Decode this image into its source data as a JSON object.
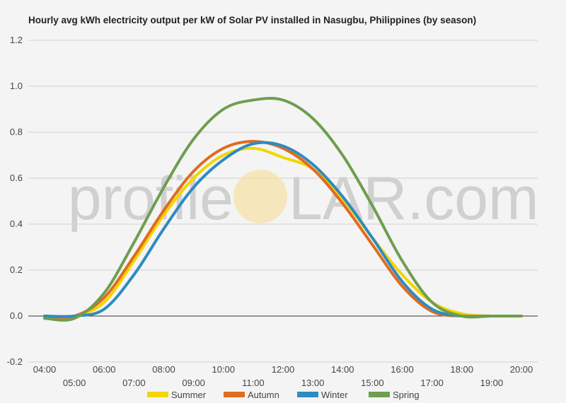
{
  "chart_data": {
    "type": "line",
    "title": "Hourly avg kWh electricity output per kW of Solar PV installed in Nasugbu, Philippines (by season)",
    "xlabel": "",
    "ylabel": "",
    "x": [
      "04:00",
      "05:00",
      "06:00",
      "07:00",
      "08:00",
      "09:00",
      "10:00",
      "11:00",
      "12:00",
      "13:00",
      "14:00",
      "15:00",
      "16:00",
      "17:00",
      "18:00",
      "19:00",
      "20:00"
    ],
    "ylim": [
      -0.2,
      1.2
    ],
    "yticks": [
      "-0.2",
      "0.0",
      "0.2",
      "0.4",
      "0.6",
      "0.8",
      "1.0",
      "1.2"
    ],
    "grid": true,
    "legend": "bottom",
    "series": [
      {
        "name": "Summer",
        "color": "#f2d600",
        "values": [
          0,
          0,
          0.06,
          0.24,
          0.44,
          0.6,
          0.7,
          0.73,
          0.69,
          0.64,
          0.51,
          0.34,
          0.18,
          0.06,
          0.01,
          0,
          0
        ]
      },
      {
        "name": "Autumn",
        "color": "#e06c1e",
        "values": [
          0,
          0,
          0.08,
          0.26,
          0.46,
          0.63,
          0.73,
          0.76,
          0.73,
          0.64,
          0.49,
          0.31,
          0.13,
          0.02,
          0,
          0,
          0
        ]
      },
      {
        "name": "Winter",
        "color": "#2e8bc0",
        "values": [
          0,
          0,
          0.03,
          0.18,
          0.38,
          0.56,
          0.68,
          0.75,
          0.74,
          0.66,
          0.52,
          0.34,
          0.15,
          0.03,
          0,
          0,
          0
        ]
      },
      {
        "name": "Spring",
        "color": "#6e9e4f",
        "values": [
          -0.01,
          -0.01,
          0.1,
          0.32,
          0.56,
          0.77,
          0.9,
          0.94,
          0.94,
          0.86,
          0.7,
          0.48,
          0.24,
          0.06,
          0,
          0,
          0
        ]
      }
    ]
  },
  "watermark": {
    "left": "profile",
    "right": "LAR.com"
  }
}
